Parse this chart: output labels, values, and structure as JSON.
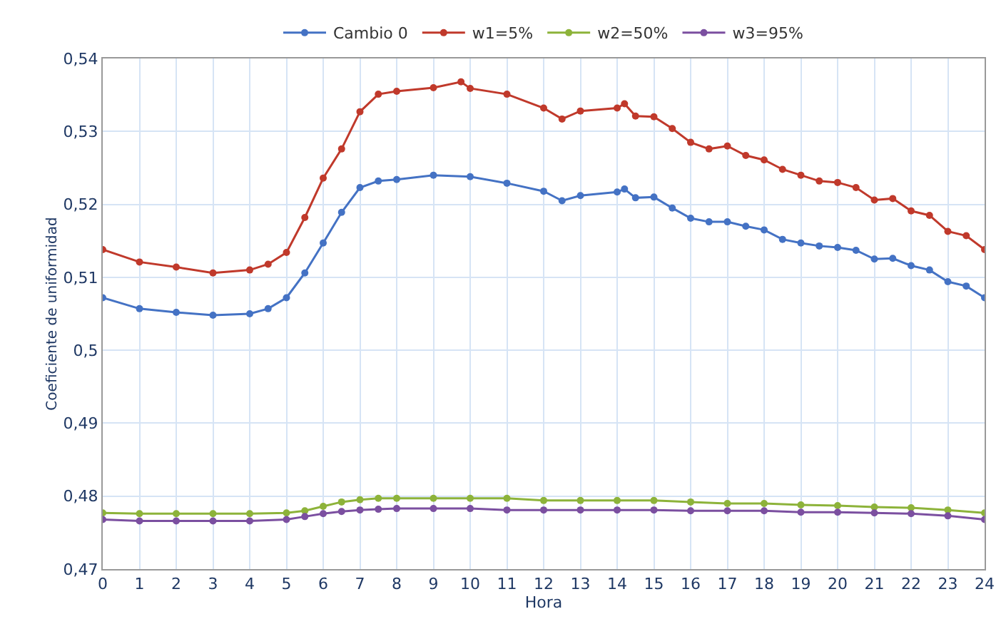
{
  "chart_data": {
    "type": "line",
    "xlabel": "Hora",
    "ylabel": "Coeficiente de uniformidad",
    "series": [
      {
        "name": "Cambio 0",
        "color": "#4472c4",
        "x": [
          0,
          1,
          2,
          3,
          4,
          4.5,
          5,
          5.5,
          6,
          6.5,
          7,
          7.5,
          8,
          9,
          10,
          11,
          12,
          12.5,
          13,
          14,
          14.2,
          14.5,
          15,
          15.5,
          16,
          16.5,
          17,
          17.5,
          18,
          18.5,
          19,
          19.5,
          20,
          20.5,
          21,
          21.5,
          22,
          22.5,
          23,
          23.5,
          24
        ],
        "values": [
          0.5072,
          0.5057,
          0.5052,
          0.5048,
          0.505,
          0.5057,
          0.5072,
          0.5106,
          0.5147,
          0.5189,
          0.5223,
          0.5232,
          0.5234,
          0.524,
          0.5238,
          0.5229,
          0.5218,
          0.5205,
          0.5212,
          0.5217,
          0.5221,
          0.5209,
          0.521,
          0.5195,
          0.5181,
          0.5176,
          0.5176,
          0.517,
          0.5165,
          0.5152,
          0.5147,
          0.5143,
          0.5141,
          0.5137,
          0.5125,
          0.5126,
          0.5116,
          0.511,
          0.5094,
          0.5088,
          0.5072
        ]
      },
      {
        "name": "w1=5%",
        "color": "#c0392b",
        "x": [
          0,
          1,
          2,
          3,
          4,
          4.5,
          5,
          5.5,
          6,
          6.5,
          7,
          7.5,
          8,
          9,
          9.75,
          10,
          11,
          12,
          12.5,
          13,
          14,
          14.2,
          14.5,
          15,
          15.5,
          16,
          16.5,
          17,
          17.5,
          18,
          18.5,
          19,
          19.5,
          20,
          20.5,
          21,
          21.5,
          22,
          22.5,
          23,
          23.5,
          24
        ],
        "values": [
          0.5138,
          0.5121,
          0.5114,
          0.5106,
          0.511,
          0.5118,
          0.5134,
          0.5182,
          0.5236,
          0.5276,
          0.5327,
          0.5351,
          0.5355,
          0.536,
          0.5368,
          0.5359,
          0.5351,
          0.5332,
          0.5317,
          0.5328,
          0.5332,
          0.5338,
          0.5321,
          0.532,
          0.5304,
          0.5285,
          0.5276,
          0.528,
          0.5267,
          0.5261,
          0.5248,
          0.524,
          0.5232,
          0.523,
          0.5223,
          0.5206,
          0.5208,
          0.5191,
          0.5185,
          0.5163,
          0.5157,
          0.5138
        ]
      },
      {
        "name": "w2=50%",
        "color": "#8db33a",
        "x": [
          0,
          1,
          2,
          3,
          4,
          5,
          5.5,
          6,
          6.5,
          7,
          7.5,
          8,
          9,
          10,
          11,
          12,
          13,
          14,
          15,
          16,
          17,
          18,
          19,
          20,
          21,
          22,
          23,
          24
        ],
        "values": [
          0.4777,
          0.4776,
          0.4776,
          0.4776,
          0.4776,
          0.4777,
          0.478,
          0.4786,
          0.4792,
          0.4795,
          0.4797,
          0.4797,
          0.4797,
          0.4797,
          0.4797,
          0.4794,
          0.4794,
          0.4794,
          0.4794,
          0.4792,
          0.479,
          0.479,
          0.4788,
          0.4787,
          0.4785,
          0.4784,
          0.4781,
          0.4777
        ]
      },
      {
        "name": "w3=95%",
        "color": "#7b4fa0",
        "x": [
          0,
          1,
          2,
          3,
          4,
          5,
          5.5,
          6,
          6.5,
          7,
          7.5,
          8,
          9,
          10,
          11,
          12,
          13,
          14,
          15,
          16,
          17,
          18,
          19,
          20,
          21,
          22,
          23,
          24
        ],
        "values": [
          0.4768,
          0.4766,
          0.4766,
          0.4766,
          0.4766,
          0.4768,
          0.4772,
          0.4776,
          0.4779,
          0.4781,
          0.4782,
          0.4783,
          0.4783,
          0.4783,
          0.4781,
          0.4781,
          0.4781,
          0.4781,
          0.4781,
          0.478,
          0.478,
          0.478,
          0.4778,
          0.4778,
          0.4777,
          0.4776,
          0.4773,
          0.4768
        ]
      }
    ],
    "xlim": [
      0,
      24
    ],
    "xticks": [
      0,
      1,
      2,
      3,
      4,
      5,
      6,
      7,
      8,
      9,
      10,
      11,
      12,
      13,
      14,
      15,
      16,
      17,
      18,
      19,
      20,
      21,
      22,
      23,
      24
    ],
    "ylim": [
      0.47,
      0.54
    ],
    "yticks": [
      {
        "value": 0.47,
        "label": "0,47"
      },
      {
        "value": 0.48,
        "label": "0,48"
      },
      {
        "value": 0.49,
        "label": "0,49"
      },
      {
        "value": 0.5,
        "label": "0,5"
      },
      {
        "value": 0.51,
        "label": "0,51"
      },
      {
        "value": 0.52,
        "label": "0,52"
      },
      {
        "value": 0.53,
        "label": "0,53"
      },
      {
        "value": 0.54,
        "label": "0,54"
      }
    ],
    "grid": true,
    "legend": "top",
    "marker": "circle",
    "line_style": "solid"
  }
}
